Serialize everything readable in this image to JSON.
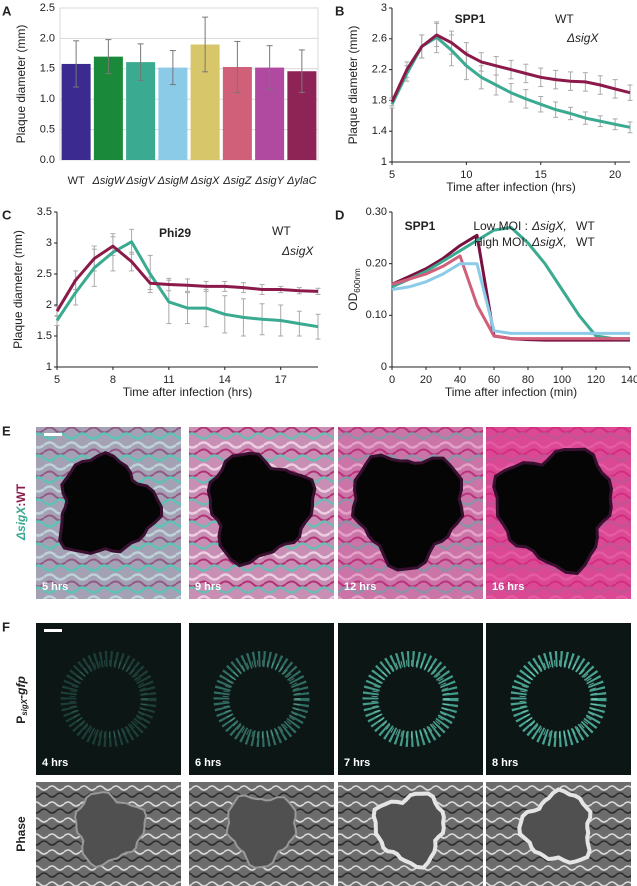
{
  "chart_data": [
    {
      "type": "bar",
      "letter": "A",
      "ylabel": "Plaque diameter (mm)",
      "categories": [
        "WT",
        "ΔsigW",
        "ΔsigV",
        "ΔsigM",
        "ΔsigX",
        "ΔsigZ",
        "ΔsigY",
        "ΔylaC"
      ],
      "values": [
        1.58,
        1.7,
        1.61,
        1.52,
        1.9,
        1.53,
        1.52,
        1.46
      ],
      "errors": [
        0.38,
        0.28,
        0.3,
        0.28,
        0.45,
        0.42,
        0.36,
        0.35
      ],
      "colors": [
        "#3b2a8f",
        "#1a8a3a",
        "#3aaa90",
        "#8ccbe8",
        "#d8c66a",
        "#d0607a",
        "#b04aa0",
        "#8e2456"
      ],
      "ylim": [
        0,
        2.5
      ],
      "yticks": [
        {
          "value": 0,
          "label": "0.0"
        },
        0.5,
        {
          "value": 1,
          "label": "1.0"
        },
        1.5,
        {
          "value": 2,
          "label": "2.0"
        },
        2.5
      ],
      "grid": true
    },
    {
      "type": "line",
      "letter": "B",
      "title": "SPP1",
      "ylabel": "Plaque diameter (mm)",
      "xlabel": "Time after infection (hrs)",
      "x": [
        5,
        6,
        7,
        8,
        9,
        10,
        11,
        12,
        13,
        14,
        15,
        16,
        17,
        18,
        19,
        20,
        21
      ],
      "series": [
        {
          "name": "WT",
          "color": "#3aaa90",
          "values": [
            1.75,
            2.15,
            2.5,
            2.62,
            2.45,
            2.25,
            2.1,
            2.0,
            1.9,
            1.82,
            1.75,
            1.68,
            1.63,
            1.57,
            1.53,
            1.49,
            1.45
          ],
          "errors": [
            0.05,
            0.1,
            0.15,
            0.2,
            0.2,
            0.18,
            0.15,
            0.13,
            0.12,
            0.12,
            0.1,
            0.1,
            0.08,
            0.08,
            0.07,
            0.07,
            0.07
          ]
        },
        {
          "name": "ΔsigX",
          "color": "#8b1a4a",
          "values": [
            1.78,
            2.2,
            2.5,
            2.65,
            2.55,
            2.4,
            2.3,
            2.25,
            2.2,
            2.15,
            2.1,
            2.07,
            2.05,
            2.04,
            2.0,
            1.95,
            1.9
          ],
          "errors": [
            0.05,
            0.1,
            0.15,
            0.15,
            0.15,
            0.15,
            0.12,
            0.12,
            0.12,
            0.12,
            0.12,
            0.12,
            0.12,
            0.12,
            0.12,
            0.12,
            0.1
          ]
        }
      ],
      "xlim": [
        5,
        21
      ],
      "xticks": [
        5,
        10,
        15,
        20
      ],
      "ylim": [
        1,
        3
      ],
      "yticks": [
        1,
        1.4,
        1.8,
        2.2,
        2.6,
        3
      ],
      "grid": false
    },
    {
      "type": "line",
      "letter": "C",
      "title": "Phi29",
      "ylabel": "Plaque diameter (mm)",
      "xlabel": "Time after infection (hrs)",
      "x": [
        5,
        6,
        7,
        8,
        9,
        10,
        11,
        12,
        13,
        14,
        15,
        16,
        17,
        18,
        19
      ],
      "series": [
        {
          "name": "WT",
          "color": "#3aaa90",
          "values": [
            1.75,
            2.2,
            2.6,
            2.85,
            3.02,
            2.5,
            2.05,
            1.95,
            1.95,
            1.85,
            1.8,
            1.77,
            1.75,
            1.7,
            1.65
          ],
          "errors": [
            0.08,
            0.2,
            0.3,
            0.3,
            0.2,
            0.3,
            0.35,
            0.25,
            0.3,
            0.3,
            0.3,
            0.25,
            0.25,
            0.2,
            0.2
          ]
        },
        {
          "name": "ΔsigX",
          "color": "#8b1a4a",
          "values": [
            1.9,
            2.4,
            2.75,
            2.95,
            2.7,
            2.35,
            2.33,
            2.32,
            2.3,
            2.3,
            2.28,
            2.25,
            2.25,
            2.23,
            2.22
          ],
          "errors": [
            0.08,
            0.15,
            0.2,
            0.15,
            0.15,
            0.1,
            0.1,
            0.1,
            0.08,
            0.08,
            0.08,
            0.08,
            0.05,
            0.05,
            0.05
          ]
        }
      ],
      "xlim": [
        5,
        19
      ],
      "xticks": [
        5,
        8,
        11,
        14,
        17
      ],
      "ylim": [
        1,
        3.5
      ],
      "yticks": [
        1,
        1.5,
        2,
        2.5,
        3,
        3.5
      ],
      "grid": false
    },
    {
      "type": "line",
      "letter": "D",
      "title": "SPP1",
      "ylabel": "OD",
      "ylabel_sub": "600nm",
      "xlabel": "Time after infection (min)",
      "legend_groups": [
        "Low MOI :",
        "High MOI:"
      ],
      "x": [
        0,
        10,
        20,
        30,
        40,
        50,
        60,
        70,
        80,
        90,
        100,
        110,
        120,
        130,
        140
      ],
      "series": [
        {
          "name": "ΔsigX,",
          "color": "#7a1040",
          "values": [
            0.16,
            0.175,
            0.19,
            0.21,
            0.235,
            0.255,
            0.06,
            0.055,
            0.053,
            0.052,
            0.052,
            0.052,
            0.052,
            0.052,
            0.052
          ]
        },
        {
          "name": "WT",
          "color": "#3aaa90",
          "values": [
            0.155,
            0.17,
            0.185,
            0.205,
            0.225,
            0.245,
            0.265,
            0.27,
            0.24,
            0.2,
            0.15,
            0.1,
            0.06,
            0.055,
            0.055
          ]
        },
        {
          "name": "ΔsigX,",
          "color": "#d0607a",
          "values": [
            0.16,
            0.17,
            0.18,
            0.195,
            0.215,
            0.12,
            0.06,
            0.055,
            0.055,
            0.055,
            0.055,
            0.055,
            0.055,
            0.055,
            0.055
          ]
        },
        {
          "name": "WT",
          "color": "#8ccbe8",
          "values": [
            0.15,
            0.155,
            0.165,
            0.18,
            0.2,
            0.2,
            0.07,
            0.065,
            0.065,
            0.065,
            0.065,
            0.065,
            0.065,
            0.065,
            0.065
          ]
        }
      ],
      "xlim": [
        0,
        140
      ],
      "xticks": [
        0,
        20,
        40,
        60,
        80,
        100,
        120,
        140
      ],
      "ylim": [
        0,
        0.3
      ],
      "yticks": [
        0,
        {
          "value": 0.1,
          "label": "0.10"
        },
        {
          "value": 0.2,
          "label": "0.20"
        },
        {
          "value": 0.3,
          "label": "0.30"
        }
      ],
      "grid": false
    }
  ],
  "image_panels": [
    {
      "letter": "E",
      "side_label": [
        "ΔsigX",
        ":WT"
      ],
      "times": [
        "5 hrs",
        "9 hrs",
        "12 hrs",
        "16 hrs"
      ]
    },
    {
      "letter": "F",
      "side_label": [
        "P",
        "sigX",
        "-gfp"
      ],
      "times": [
        "4 hrs",
        "6 hrs",
        "7 hrs",
        "8 hrs"
      ],
      "row2_label": "Phase"
    }
  ]
}
